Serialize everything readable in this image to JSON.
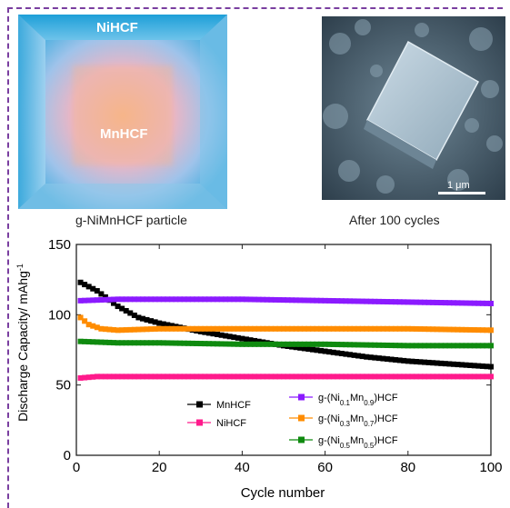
{
  "panels": {
    "particle": {
      "shell_label": "NiHCF",
      "core_label": "MnHCF",
      "caption": "g-NiMnHCF particle"
    },
    "sem": {
      "caption": "After 100 cycles",
      "scale_bar_label": "1 μm"
    }
  },
  "colors": {
    "frame": "#7a3fa0",
    "shell": "#2fa6d9",
    "core": "#f3b48b",
    "MnHCF": "#000000",
    "NiHCF": "#ff1a8c",
    "g-(Ni0.1Mn0.9)HCF": "#8b1aff",
    "g-(Ni0.3Mn0.7)HCF": "#ff8c00",
    "g-(Ni0.5Mn0.5)HCF": "#0f8a0f"
  },
  "chart_data": {
    "type": "line",
    "xlabel": "Cycle number",
    "ylabel": "Discharge Capacity/ mAhg",
    "ylabel_sup": "-1",
    "xlim": [
      0,
      100
    ],
    "ylim": [
      0,
      150
    ],
    "xticks": [
      0,
      20,
      40,
      60,
      80,
      100
    ],
    "yticks": [
      0,
      50,
      100,
      150
    ],
    "legend_placement": "bottom-center",
    "series": [
      {
        "name": "MnHCF",
        "label_parts": [
          [
            "MnHCF",
            ""
          ]
        ],
        "color": "#000000",
        "marker": "square",
        "x": [
          1,
          5,
          10,
          15,
          20,
          30,
          40,
          50,
          60,
          70,
          80,
          90,
          100
        ],
        "y": [
          123,
          117,
          106,
          98,
          94,
          88,
          83,
          78,
          74,
          70,
          67,
          65,
          63
        ]
      },
      {
        "name": "NiHCF",
        "label_parts": [
          [
            "NiHCF",
            ""
          ]
        ],
        "color": "#ff1a8c",
        "marker": "square",
        "x": [
          1,
          5,
          10,
          20,
          40,
          60,
          80,
          100
        ],
        "y": [
          55,
          56,
          56,
          56,
          56,
          56,
          56,
          56
        ]
      },
      {
        "name": "g-(Ni0.1Mn0.9)HCF",
        "label_parts": [
          [
            "g-(Ni",
            ""
          ],
          [
            "",
            "0.1"
          ],
          [
            "Mn",
            ""
          ],
          [
            "",
            "0.9"
          ],
          [
            ")HCF",
            ""
          ]
        ],
        "color": "#8b1aff",
        "marker": "square",
        "x": [
          1,
          10,
          20,
          40,
          60,
          80,
          100
        ],
        "y": [
          110,
          111,
          111,
          111,
          110,
          109,
          108
        ]
      },
      {
        "name": "g-(Ni0.3Mn0.7)HCF",
        "label_parts": [
          [
            "g-(Ni",
            ""
          ],
          [
            "",
            "0.3"
          ],
          [
            "Mn",
            ""
          ],
          [
            "",
            "0.7"
          ],
          [
            ")HCF",
            ""
          ]
        ],
        "color": "#ff8c00",
        "marker": "square",
        "x": [
          1,
          3,
          6,
          10,
          20,
          40,
          60,
          80,
          100
        ],
        "y": [
          98,
          93,
          90,
          89,
          90,
          90,
          90,
          90,
          89
        ]
      },
      {
        "name": "g-(Ni0.5Mn0.5)HCF",
        "label_parts": [
          [
            "g-(Ni",
            ""
          ],
          [
            "",
            "0.5"
          ],
          [
            "Mn",
            ""
          ],
          [
            "",
            "0.5"
          ],
          [
            ")HCF",
            ""
          ]
        ],
        "color": "#0f8a0f",
        "marker": "square",
        "x": [
          1,
          10,
          20,
          40,
          60,
          80,
          100
        ],
        "y": [
          81,
          80,
          80,
          79,
          79,
          78,
          78
        ]
      }
    ]
  }
}
